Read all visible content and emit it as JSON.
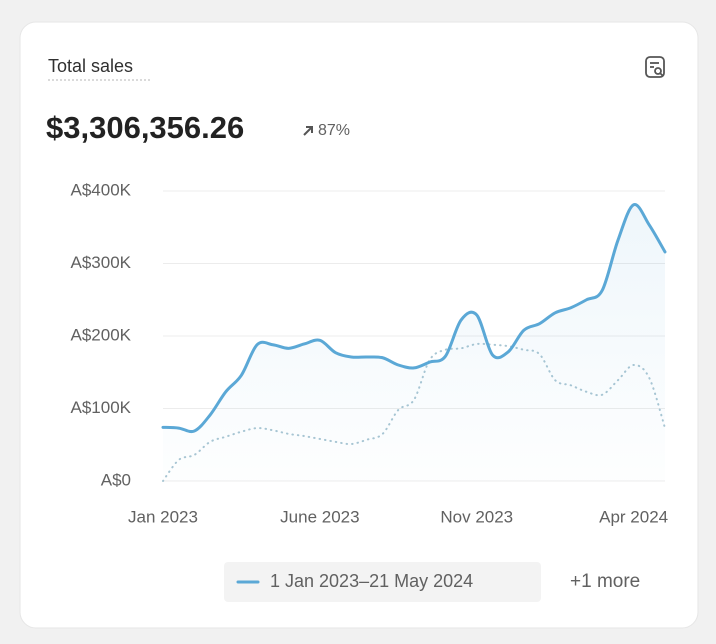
{
  "header": {
    "title": "Total sales",
    "total": "$3,306,356.26",
    "change": "87%"
  },
  "chart_data": {
    "type": "line",
    "categories": [
      "Jan 2023",
      null,
      null,
      null,
      null,
      null,
      null,
      null,
      null,
      null,
      "June 2023",
      null,
      null,
      null,
      null,
      null,
      null,
      null,
      null,
      null,
      "Nov 2023",
      null,
      null,
      null,
      null,
      null,
      null,
      null,
      null,
      null,
      "Apr 2024",
      null,
      null
    ],
    "series": [
      {
        "name": "1 Jan 2023–21 May 2024",
        "color": "#5ba8d6",
        "style": "solid",
        "values": [
          74000,
          73000,
          69000,
          91000,
          123000,
          146000,
          188000,
          188000,
          183000,
          189000,
          194000,
          177000,
          171000,
          171000,
          170000,
          160000,
          156000,
          164000,
          172000,
          222000,
          229000,
          174000,
          178000,
          208000,
          217000,
          232000,
          239000,
          250000,
          263000,
          332000,
          381000,
          353000,
          316000
        ]
      },
      {
        "color": "#a9c6d3",
        "style": "dotted",
        "values": [
          0,
          29000,
          36000,
          54000,
          61000,
          68000,
          73000,
          70000,
          65000,
          62000,
          58000,
          54000,
          51000,
          57000,
          65000,
          98000,
          112000,
          167000,
          181000,
          183000,
          189000,
          188000,
          186000,
          181000,
          175000,
          139000,
          132000,
          123000,
          119000,
          139000,
          160000,
          142000,
          73000
        ]
      }
    ],
    "ylim": [
      0,
      400000
    ],
    "yticks": [
      {
        "value": 0,
        "label": "A$0"
      },
      {
        "value": 100000,
        "label": "A$100K"
      },
      {
        "value": 200000,
        "label": "A$200K"
      },
      {
        "value": 300000,
        "label": "A$300K"
      },
      {
        "value": 400000,
        "label": "A$400K"
      }
    ],
    "grid": true
  },
  "footer": {
    "more": "+1 more"
  }
}
